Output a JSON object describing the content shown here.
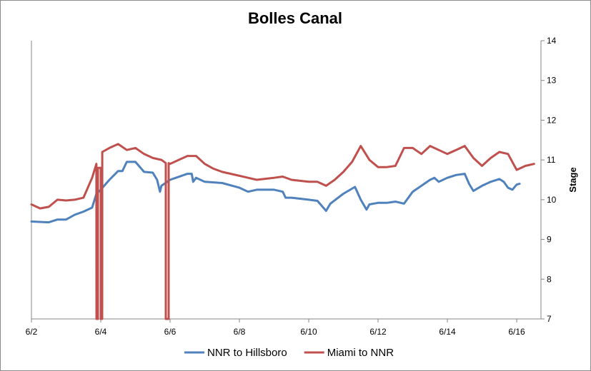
{
  "chart_data": {
    "type": "line",
    "title": "Bolles Canal",
    "xlabel": "",
    "ylabel": "Stage",
    "y_axis_side": "right",
    "x_tick_labels": [
      "6/2",
      "6/4",
      "6/6",
      "6/8",
      "6/10",
      "6/12",
      "6/14",
      "6/16"
    ],
    "xlim": [
      "6/2",
      "6/16.7"
    ],
    "ylim": [
      7,
      14
    ],
    "y_ticks": [
      7,
      8,
      9,
      10,
      11,
      12,
      13,
      14
    ],
    "grid": false,
    "legend_position": "bottom",
    "series": [
      {
        "name": "NNR to Hillsboro",
        "color": "#4f81bd",
        "points": [
          [
            "6/2 00:00",
            9.45
          ],
          [
            "6/2 12:00",
            9.43
          ],
          [
            "6/2 18:00",
            9.5
          ],
          [
            "6/3 00:00",
            9.5
          ],
          [
            "6/3 06:00",
            9.62
          ],
          [
            "6/3 12:00",
            9.7
          ],
          [
            "6/3 18:00",
            9.8
          ],
          [
            "6/3 21:00",
            10.15
          ],
          [
            "6/4 00:00",
            10.25
          ],
          [
            "6/4 06:00",
            10.5
          ],
          [
            "6/4 12:00",
            10.72
          ],
          [
            "6/4 15:00",
            10.72
          ],
          [
            "6/4 18:00",
            10.95
          ],
          [
            "6/5 00:00",
            10.95
          ],
          [
            "6/5 06:00",
            10.7
          ],
          [
            "6/5 12:00",
            10.68
          ],
          [
            "6/5 15:00",
            10.5
          ],
          [
            "6/5 17:00",
            10.2
          ],
          [
            "6/5 18:00",
            10.35
          ],
          [
            "6/6 00:00",
            10.5
          ],
          [
            "6/6 12:00",
            10.65
          ],
          [
            "6/6 15:00",
            10.65
          ],
          [
            "6/6 16:00",
            10.45
          ],
          [
            "6/6 18:00",
            10.55
          ],
          [
            "6/7 00:00",
            10.45
          ],
          [
            "6/7 12:00",
            10.42
          ],
          [
            "6/8 00:00",
            10.3
          ],
          [
            "6/8 06:00",
            10.2
          ],
          [
            "6/8 12:00",
            10.25
          ],
          [
            "6/9 00:00",
            10.25
          ],
          [
            "6/9 06:00",
            10.2
          ],
          [
            "6/9 08:00",
            10.05
          ],
          [
            "6/9 12:00",
            10.05
          ],
          [
            "6/10 00:00",
            10.0
          ],
          [
            "6/10 06:00",
            9.97
          ],
          [
            "6/10 12:00",
            9.72
          ],
          [
            "6/10 15:00",
            9.9
          ],
          [
            "6/11 00:00",
            10.15
          ],
          [
            "6/11 08:00",
            10.32
          ],
          [
            "6/11 12:00",
            10.0
          ],
          [
            "6/11 16:00",
            9.75
          ],
          [
            "6/11 18:00",
            9.88
          ],
          [
            "6/12 00:00",
            9.92
          ],
          [
            "6/12 06:00",
            9.92
          ],
          [
            "6/12 12:00",
            9.95
          ],
          [
            "6/12 18:00",
            9.9
          ],
          [
            "6/13 00:00",
            10.2
          ],
          [
            "6/13 06:00",
            10.35
          ],
          [
            "6/13 12:00",
            10.5
          ],
          [
            "6/13 15:00",
            10.55
          ],
          [
            "6/13 18:00",
            10.45
          ],
          [
            "6/14 00:00",
            10.55
          ],
          [
            "6/14 06:00",
            10.62
          ],
          [
            "6/14 12:00",
            10.65
          ],
          [
            "6/14 15:00",
            10.4
          ],
          [
            "6/14 18:00",
            10.22
          ],
          [
            "6/15 00:00",
            10.35
          ],
          [
            "6/15 06:00",
            10.45
          ],
          [
            "6/15 12:00",
            10.52
          ],
          [
            "6/15 15:00",
            10.45
          ],
          [
            "6/15 18:00",
            10.3
          ],
          [
            "6/15 21:00",
            10.25
          ],
          [
            "6/16 00:00",
            10.38
          ],
          [
            "6/16 02:00",
            10.4
          ]
        ]
      },
      {
        "name": "Miami to NNR",
        "color": "#c0504d",
        "points": [
          [
            "6/2 00:00",
            9.88
          ],
          [
            "6/2 06:00",
            9.78
          ],
          [
            "6/2 12:00",
            9.82
          ],
          [
            "6/2 18:00",
            10.0
          ],
          [
            "6/3 00:00",
            9.98
          ],
          [
            "6/3 06:00",
            10.0
          ],
          [
            "6/3 12:00",
            10.05
          ],
          [
            "6/3 18:00",
            10.55
          ],
          [
            "6/3 21:00",
            10.9
          ],
          [
            "6/3 21:01",
            7.0
          ],
          [
            "6/3 22:00",
            7.0
          ],
          [
            "6/3 22:01",
            10.8
          ],
          [
            "6/4 00:00",
            10.8
          ],
          [
            "6/4 00:01",
            7.0
          ],
          [
            "6/4 01:00",
            7.0
          ],
          [
            "6/4 01:01",
            11.2
          ],
          [
            "6/4 06:00",
            11.3
          ],
          [
            "6/4 12:00",
            11.4
          ],
          [
            "6/4 18:00",
            11.25
          ],
          [
            "6/5 00:00",
            11.3
          ],
          [
            "6/5 06:00",
            11.15
          ],
          [
            "6/5 12:00",
            11.05
          ],
          [
            "6/5 18:00",
            11.0
          ],
          [
            "6/5 21:00",
            10.92
          ],
          [
            "6/5 21:01",
            7.0
          ],
          [
            "6/5 23:00",
            7.0
          ],
          [
            "6/5 23:01",
            10.92
          ],
          [
            "6/6 00:00",
            10.9
          ],
          [
            "6/6 06:00",
            11.0
          ],
          [
            "6/6 12:00",
            11.1
          ],
          [
            "6/6 18:00",
            11.1
          ],
          [
            "6/7 00:00",
            10.9
          ],
          [
            "6/7 06:00",
            10.78
          ],
          [
            "6/7 12:00",
            10.7
          ],
          [
            "6/8 00:00",
            10.6
          ],
          [
            "6/8 06:00",
            10.55
          ],
          [
            "6/8 12:00",
            10.5
          ],
          [
            "6/9 00:00",
            10.55
          ],
          [
            "6/9 06:00",
            10.58
          ],
          [
            "6/9 12:00",
            10.5
          ],
          [
            "6/10 00:00",
            10.45
          ],
          [
            "6/10 06:00",
            10.45
          ],
          [
            "6/10 12:00",
            10.35
          ],
          [
            "6/10 18:00",
            10.5
          ],
          [
            "6/11 00:00",
            10.7
          ],
          [
            "6/11 06:00",
            10.95
          ],
          [
            "6/11 12:00",
            11.35
          ],
          [
            "6/11 18:00",
            11.0
          ],
          [
            "6/12 00:00",
            10.82
          ],
          [
            "6/12 06:00",
            10.82
          ],
          [
            "6/12 12:00",
            10.85
          ],
          [
            "6/12 18:00",
            11.3
          ],
          [
            "6/13 00:00",
            11.3
          ],
          [
            "6/13 06:00",
            11.15
          ],
          [
            "6/13 12:00",
            11.35
          ],
          [
            "6/13 18:00",
            11.25
          ],
          [
            "6/14 00:00",
            11.15
          ],
          [
            "6/14 06:00",
            11.25
          ],
          [
            "6/14 12:00",
            11.35
          ],
          [
            "6/14 18:00",
            11.05
          ],
          [
            "6/15 00:00",
            10.85
          ],
          [
            "6/15 06:00",
            11.05
          ],
          [
            "6/15 12:00",
            11.2
          ],
          [
            "6/15 18:00",
            11.15
          ],
          [
            "6/16 00:00",
            10.75
          ],
          [
            "6/16 06:00",
            10.85
          ],
          [
            "6/16 12:00",
            10.9
          ]
        ]
      }
    ]
  }
}
